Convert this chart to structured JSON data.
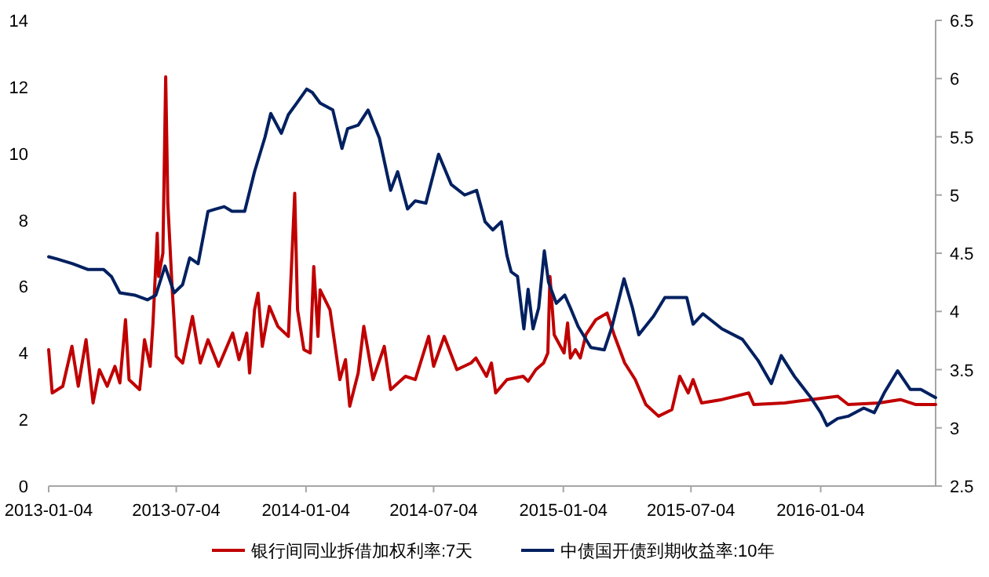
{
  "chart_data": {
    "type": "line",
    "xlim": [
      "2013-01-04",
      "2016-06-15"
    ],
    "xticks": [
      "2013-01-04",
      "2013-07-04",
      "2014-01-04",
      "2014-07-04",
      "2015-01-04",
      "2015-07-04",
      "2016-01-04"
    ],
    "ylim": [
      0,
      14
    ],
    "yticks": [
      0,
      2,
      4,
      6,
      8,
      10,
      12,
      14
    ],
    "y2lim": [
      2.5,
      6.5
    ],
    "y2ticks": [
      2.5,
      3,
      3.5,
      4,
      4.5,
      5,
      5.5,
      6,
      6.5
    ],
    "legend": "bottom",
    "grid": false,
    "line_style": "solid",
    "series": [
      {
        "name": "银行间同业拆借加权利率:7天",
        "color": "#c00000",
        "x": [
          "2013-01-04",
          "2013-01-09",
          "2013-01-24",
          "2013-02-06",
          "2013-02-15",
          "2013-02-26",
          "2013-03-08",
          "2013-03-17",
          "2013-03-28",
          "2013-04-08",
          "2013-04-15",
          "2013-04-23",
          "2013-04-28",
          "2013-05-13",
          "2013-05-20",
          "2013-05-28",
          "2013-06-01",
          "2013-06-07",
          "2013-06-09",
          "2013-06-15",
          "2013-06-19",
          "2013-06-22",
          "2013-06-28",
          "2013-07-04",
          "2013-07-13",
          "2013-07-27",
          "2013-08-07",
          "2013-08-18",
          "2013-09-02",
          "2013-09-22",
          "2013-10-01",
          "2013-10-12",
          "2013-10-16",
          "2013-10-23",
          "2013-10-28",
          "2013-11-03",
          "2013-11-13",
          "2013-11-25",
          "2013-12-10",
          "2013-12-19",
          "2013-12-23",
          "2014-01-01",
          "2014-01-10",
          "2014-01-15",
          "2014-01-21",
          "2014-01-24",
          "2014-02-07",
          "2014-02-21",
          "2014-03-01",
          "2014-03-07",
          "2014-03-19",
          "2014-03-27",
          "2014-04-09",
          "2014-04-25",
          "2014-05-04",
          "2014-05-25",
          "2014-06-08",
          "2014-06-27",
          "2014-07-04",
          "2014-07-19",
          "2014-08-06",
          "2014-08-26",
          "2014-09-02",
          "2014-09-17",
          "2014-09-24",
          "2014-09-30",
          "2014-10-16",
          "2014-11-08",
          "2014-11-15",
          "2014-11-26",
          "2014-12-07",
          "2014-12-13",
          "2014-12-16",
          "2014-12-22",
          "2015-01-05",
          "2015-01-10",
          "2015-01-14",
          "2015-01-21",
          "2015-01-28",
          "2015-02-05",
          "2015-02-19",
          "2015-03-07",
          "2015-03-17",
          "2015-04-01",
          "2015-04-16",
          "2015-05-01",
          "2015-05-19",
          "2015-06-07",
          "2015-06-18",
          "2015-06-30",
          "2015-07-07",
          "2015-07-19",
          "2015-08-17",
          "2015-09-24",
          "2015-10-01",
          "2015-11-14",
          "2015-12-21",
          "2016-01-28",
          "2016-02-12",
          "2016-03-27",
          "2016-04-26",
          "2016-05-18",
          "2016-06-15"
        ],
        "values": [
          4.1,
          2.8,
          3.0,
          4.2,
          3.0,
          4.4,
          2.5,
          3.5,
          3.0,
          3.6,
          3.1,
          5.0,
          3.2,
          2.9,
          4.4,
          3.6,
          4.9,
          7.6,
          6.3,
          7.0,
          12.3,
          8.5,
          6.0,
          3.9,
          3.7,
          5.1,
          3.7,
          4.4,
          3.6,
          4.6,
          3.8,
          4.6,
          3.4,
          5.3,
          5.8,
          4.2,
          5.4,
          4.8,
          4.5,
          8.8,
          5.3,
          4.1,
          4.0,
          6.6,
          4.5,
          5.9,
          5.3,
          3.2,
          3.8,
          2.4,
          3.4,
          4.8,
          3.2,
          4.2,
          2.9,
          3.3,
          3.2,
          4.5,
          3.6,
          4.5,
          3.5,
          3.7,
          3.85,
          3.3,
          3.7,
          2.8,
          3.2,
          3.3,
          3.15,
          3.5,
          3.7,
          4.0,
          6.3,
          4.55,
          4.0,
          4.9,
          3.85,
          4.1,
          3.85,
          4.55,
          5.0,
          5.2,
          4.55,
          3.7,
          3.2,
          2.45,
          2.1,
          2.3,
          3.3,
          2.8,
          3.2,
          2.5,
          2.6,
          2.8,
          2.45,
          2.5,
          2.6,
          2.7,
          2.45,
          2.5,
          2.6,
          2.45,
          2.45
        ]
      },
      {
        "name": "中债国开债到期收益率:10年",
        "color": "#002060",
        "axis": "y2",
        "x": [
          "2013-01-04",
          "2013-01-16",
          "2013-02-07",
          "2013-03-01",
          "2013-03-23",
          "2013-04-03",
          "2013-04-15",
          "2013-05-06",
          "2013-05-24",
          "2013-06-05",
          "2013-06-18",
          "2013-07-01",
          "2013-07-13",
          "2013-07-23",
          "2013-08-04",
          "2013-08-18",
          "2013-08-29",
          "2013-09-10",
          "2013-09-21",
          "2013-10-09",
          "2013-10-23",
          "2013-11-07",
          "2013-11-15",
          "2013-11-30",
          "2013-12-10",
          "2013-12-22",
          "2014-01-05",
          "2014-01-13",
          "2014-01-24",
          "2014-02-11",
          "2014-02-24",
          "2014-03-04",
          "2014-03-19",
          "2014-04-02",
          "2014-04-18",
          "2014-05-04",
          "2014-05-14",
          "2014-05-28",
          "2014-06-08",
          "2014-06-23",
          "2014-07-11",
          "2014-07-29",
          "2014-08-17",
          "2014-09-03",
          "2014-09-15",
          "2014-09-26",
          "2014-10-08",
          "2014-10-16",
          "2014-10-22",
          "2014-10-31",
          "2014-11-09",
          "2014-11-15",
          "2014-11-22",
          "2014-11-30",
          "2014-12-08",
          "2014-12-14",
          "2014-12-25",
          "2015-01-06",
          "2015-01-14",
          "2015-01-25",
          "2015-02-12",
          "2015-03-03",
          "2015-03-14",
          "2015-03-31",
          "2015-04-12",
          "2015-04-21",
          "2015-05-12",
          "2015-05-28",
          "2015-06-14",
          "2015-06-28",
          "2015-07-07",
          "2015-07-21",
          "2015-08-17",
          "2015-09-15",
          "2015-10-07",
          "2015-10-26",
          "2015-11-09",
          "2015-11-28",
          "2015-12-21",
          "2016-01-04",
          "2016-01-13",
          "2016-01-28",
          "2016-02-12",
          "2016-03-05",
          "2016-03-20",
          "2016-04-04",
          "2016-04-22",
          "2016-05-10",
          "2016-05-25",
          "2016-06-15"
        ],
        "values": [
          4.47,
          4.45,
          4.41,
          4.36,
          4.36,
          4.3,
          4.16,
          4.14,
          4.1,
          4.14,
          4.39,
          4.16,
          4.23,
          4.46,
          4.41,
          4.86,
          4.88,
          4.9,
          4.86,
          4.86,
          5.2,
          5.5,
          5.7,
          5.53,
          5.69,
          5.79,
          5.91,
          5.88,
          5.79,
          5.73,
          5.4,
          5.57,
          5.6,
          5.73,
          5.49,
          5.04,
          5.2,
          4.88,
          4.95,
          4.93,
          5.35,
          5.09,
          5.0,
          5.04,
          4.77,
          4.7,
          4.77,
          4.48,
          4.34,
          4.3,
          3.85,
          4.19,
          3.85,
          4.03,
          4.52,
          4.25,
          4.07,
          4.14,
          4.03,
          3.87,
          3.69,
          3.67,
          3.87,
          4.28,
          4.03,
          3.8,
          3.96,
          4.12,
          4.12,
          4.12,
          3.89,
          3.98,
          3.85,
          3.76,
          3.58,
          3.38,
          3.62,
          3.44,
          3.26,
          3.13,
          3.02,
          3.08,
          3.1,
          3.17,
          3.13,
          3.31,
          3.49,
          3.33,
          3.33,
          3.26
        ]
      }
    ]
  }
}
